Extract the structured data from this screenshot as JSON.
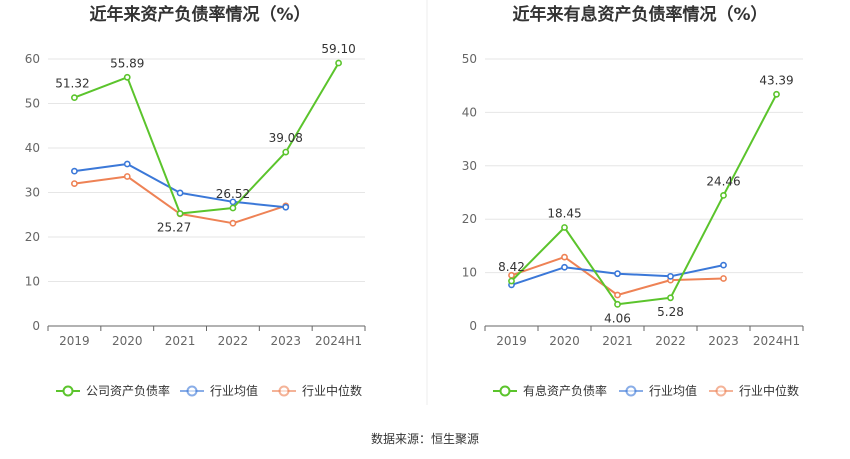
{
  "source_text": "数据来源：恒生聚源",
  "chart_data": [
    {
      "type": "line",
      "title": "近年来资产负债率情况（%）",
      "categories": [
        "2019",
        "2020",
        "2021",
        "2022",
        "2023",
        "2024H1"
      ],
      "ylim": [
        0,
        60
      ],
      "yticks": [
        0,
        10,
        20,
        30,
        40,
        50,
        60
      ],
      "grid": true,
      "legend_position": "bottom",
      "series": [
        {
          "name": "公司资产负债率",
          "color": "#5bc42c",
          "values": [
            51.32,
            55.89,
            25.27,
            26.52,
            39.08,
            59.1
          ],
          "labels": [
            "51.32",
            "55.89",
            "25.27",
            "26.52",
            "39.08",
            "59.10"
          ]
        },
        {
          "name": "行业均值",
          "color": "#3b78d8",
          "values": [
            34.8,
            36.4,
            29.9,
            27.9,
            26.7,
            null
          ]
        },
        {
          "name": "行业中位数",
          "color": "#ee8255",
          "values": [
            32.0,
            33.6,
            25.2,
            23.1,
            27.0,
            null
          ]
        }
      ]
    },
    {
      "type": "line",
      "title": "近年来有息资产负债率情况（%）",
      "categories": [
        "2019",
        "2020",
        "2021",
        "2022",
        "2023",
        "2024H1"
      ],
      "ylim": [
        0,
        50
      ],
      "yticks": [
        0,
        10,
        20,
        30,
        40,
        50
      ],
      "grid": true,
      "legend_position": "bottom",
      "series": [
        {
          "name": "有息资产负债率",
          "color": "#5bc42c",
          "values": [
            8.42,
            18.45,
            4.06,
            5.28,
            24.46,
            43.39
          ],
          "labels": [
            "8.42",
            "18.45",
            "4.06",
            "5.28",
            "24.46",
            "43.39"
          ]
        },
        {
          "name": "行业均值",
          "color": "#3b78d8",
          "values": [
            7.7,
            11.0,
            9.8,
            9.3,
            11.4,
            null
          ]
        },
        {
          "name": "行业中位数",
          "color": "#ee8255",
          "values": [
            9.5,
            12.9,
            5.8,
            8.6,
            8.9,
            null
          ]
        }
      ]
    }
  ]
}
